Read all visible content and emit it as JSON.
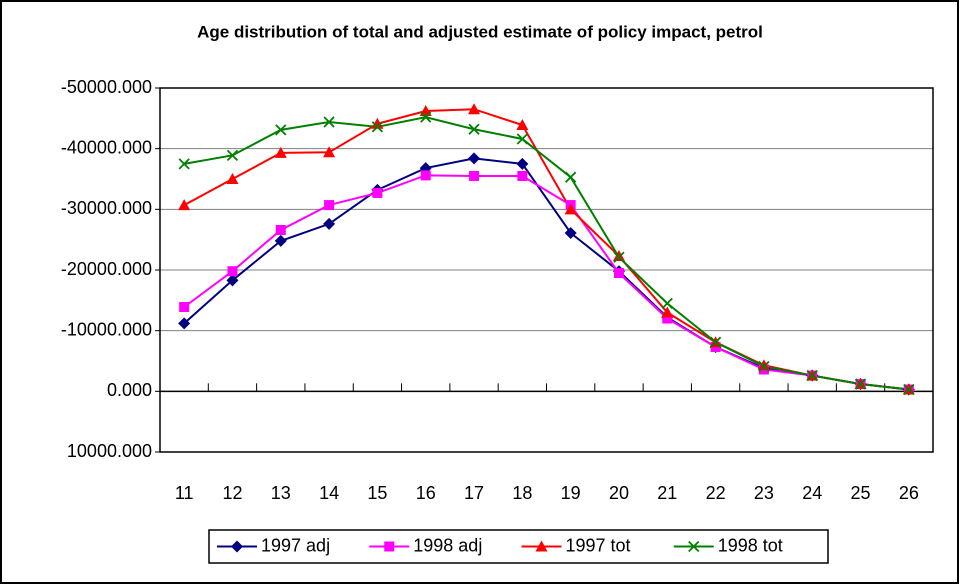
{
  "chart_data": {
    "type": "line",
    "title": "Age distribution of total and adjusted estimate of policy impact, petrol",
    "categories": [
      "11",
      "12",
      "13",
      "14",
      "15",
      "16",
      "17",
      "18",
      "19",
      "20",
      "21",
      "22",
      "23",
      "24",
      "25",
      "26"
    ],
    "ylim": [
      10000,
      -50000
    ],
    "yticks": [
      {
        "value": -50000,
        "label": "-50000.000"
      },
      {
        "value": -40000,
        "label": "-40000.000"
      },
      {
        "value": -30000,
        "label": "-30000.000"
      },
      {
        "value": -20000,
        "label": "-20000.000"
      },
      {
        "value": -10000,
        "label": "-10000.000"
      },
      {
        "value": 0,
        "label": "0.000"
      },
      {
        "value": 10000,
        "label": "10000.000"
      }
    ],
    "grid": true,
    "legend": "bottom",
    "series": [
      {
        "name": "1997 adj",
        "color": "#000080",
        "marker": "diamond",
        "values": [
          -11200,
          -18300,
          -24800,
          -27600,
          -33200,
          -36800,
          -38400,
          -37500,
          -26100,
          -19800,
          -12200,
          -7300,
          -3800,
          -2600,
          -1200,
          -300
        ]
      },
      {
        "name": "1998 adj",
        "color": "#ff00ff",
        "marker": "square",
        "values": [
          -13900,
          -19800,
          -26600,
          -30700,
          -32700,
          -35600,
          -35500,
          -35500,
          -30700,
          -19500,
          -12000,
          -7300,
          -3600,
          -2600,
          -1200,
          -300
        ]
      },
      {
        "name": "1997 tot",
        "color": "#ff0000",
        "marker": "triangle",
        "values": [
          -30700,
          -35000,
          -39300,
          -39400,
          -44100,
          -46200,
          -46500,
          -43900,
          -30000,
          -22300,
          -13000,
          -8100,
          -4300,
          -2600,
          -1200,
          -300
        ]
      },
      {
        "name": "1998 tot",
        "color": "#008000",
        "marker": "x",
        "values": [
          -37500,
          -38900,
          -43100,
          -44400,
          -43600,
          -45200,
          -43200,
          -41600,
          -35300,
          -22100,
          -14500,
          -8100,
          -4100,
          -2600,
          -1200,
          -300
        ]
      }
    ]
  }
}
